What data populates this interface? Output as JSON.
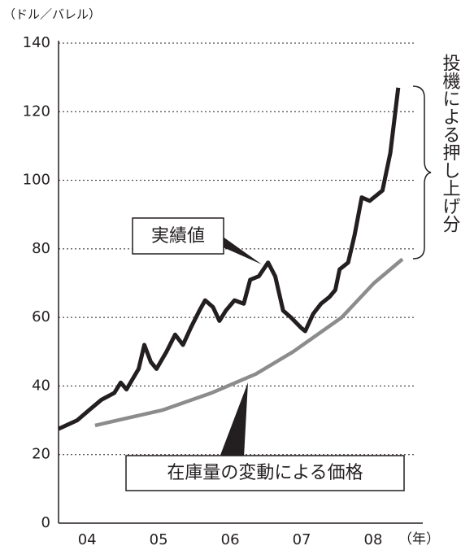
{
  "chart_data": {
    "type": "line",
    "y_unit_label": "（ドル／バレル）",
    "x_unit_label": "（年）",
    "annotations": [
      "実績値",
      "在庫量の変動による価格",
      "投機による押し上げ分"
    ],
    "xlim": [
      2004.1,
      2009.08
    ],
    "xticks": [
      {
        "value": 2004.5,
        "label": "04"
      },
      {
        "value": 2005.5,
        "label": "05"
      },
      {
        "value": 2006.5,
        "label": "06"
      },
      {
        "value": 2007.5,
        "label": "07"
      },
      {
        "value": 2008.5,
        "label": "08"
      }
    ],
    "ylim": [
      0,
      140
    ],
    "yticks": [
      0,
      20,
      40,
      60,
      80,
      100,
      120,
      140
    ],
    "grid": true,
    "series": [
      {
        "name": "実績値",
        "color": "#231f20",
        "x": [
          2004.1,
          2004.36,
          2004.53,
          2004.7,
          2004.88,
          2004.97,
          2005.05,
          2005.22,
          2005.3,
          2005.39,
          2005.47,
          2005.61,
          2005.73,
          2005.84,
          2005.95,
          2006.07,
          2006.15,
          2006.26,
          2006.35,
          2006.44,
          2006.56,
          2006.69,
          2006.78,
          2006.9,
          2007.03,
          2007.13,
          2007.24,
          2007.35,
          2007.49,
          2007.55,
          2007.66,
          2007.77,
          2007.89,
          2007.97,
          2008.03,
          2008.15,
          2008.24,
          2008.34,
          2008.45,
          2008.63,
          2008.74,
          2008.85
        ],
        "values": [
          27.5,
          30,
          33,
          36,
          38,
          41,
          39,
          45,
          52,
          47,
          45,
          50,
          55,
          52,
          57,
          62,
          65,
          63,
          59,
          62,
          65,
          64,
          71,
          72,
          76,
          72,
          62,
          60,
          57,
          56,
          61,
          64,
          66,
          68,
          74,
          76,
          84,
          95,
          94,
          97,
          108,
          127
        ]
      },
      {
        "name": "在庫量の変動による価格",
        "color": "#8c8c8c",
        "x": [
          2004.61,
          2005.56,
          2006.24,
          2006.86,
          2007.38,
          2008.06,
          2008.51,
          2008.91
        ],
        "values": [
          28.5,
          33,
          38,
          43.5,
          50,
          60,
          70,
          77
        ]
      }
    ]
  }
}
